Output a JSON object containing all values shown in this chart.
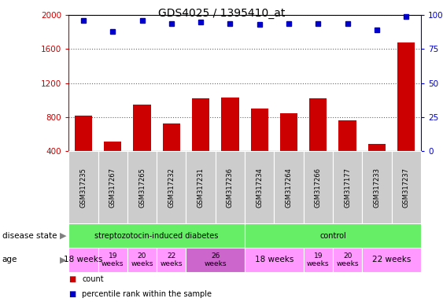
{
  "title": "GDS4025 / 1395410_at",
  "samples": [
    "GSM317235",
    "GSM317267",
    "GSM317265",
    "GSM317232",
    "GSM317231",
    "GSM317236",
    "GSM317234",
    "GSM317264",
    "GSM317266",
    "GSM317177",
    "GSM317233",
    "GSM317237"
  ],
  "counts": [
    820,
    510,
    950,
    720,
    1020,
    1030,
    900,
    840,
    1020,
    760,
    480,
    1680
  ],
  "percentiles": [
    96,
    88,
    96,
    94,
    95,
    94,
    93,
    94,
    94,
    94,
    89,
    99
  ],
  "ylim_left": [
    400,
    2000
  ],
  "ylim_right": [
    0,
    100
  ],
  "yticks_left": [
    400,
    800,
    1200,
    1600,
    2000
  ],
  "yticks_right": [
    0,
    25,
    50,
    75,
    100
  ],
  "bar_color": "#cc0000",
  "dot_color": "#0000cc",
  "tick_label_bg": "#cccccc",
  "ds_color": "#66ee66",
  "age_color_normal": "#ff99ff",
  "age_color_dark": "#cc66cc",
  "age_groups": [
    {
      "label": "18 weeks",
      "s": -0.5,
      "e": 0.5,
      "color": "normal",
      "fs": 7.5
    },
    {
      "label": "19\nweeks",
      "s": 0.5,
      "e": 1.5,
      "color": "normal",
      "fs": 6.5
    },
    {
      "label": "20\nweeks",
      "s": 1.5,
      "e": 2.5,
      "color": "normal",
      "fs": 6.5
    },
    {
      "label": "22\nweeks",
      "s": 2.5,
      "e": 3.5,
      "color": "normal",
      "fs": 6.5
    },
    {
      "label": "26\nweeks",
      "s": 3.5,
      "e": 5.5,
      "color": "dark",
      "fs": 6.5
    },
    {
      "label": "18 weeks",
      "s": 5.5,
      "e": 7.5,
      "color": "normal",
      "fs": 7.5
    },
    {
      "label": "19\nweeks",
      "s": 7.5,
      "e": 8.5,
      "color": "normal",
      "fs": 6.5
    },
    {
      "label": "20\nweeks",
      "s": 8.5,
      "e": 9.5,
      "color": "normal",
      "fs": 6.5
    },
    {
      "label": "22 weeks",
      "s": 9.5,
      "e": 11.5,
      "color": "normal",
      "fs": 7.5
    }
  ]
}
